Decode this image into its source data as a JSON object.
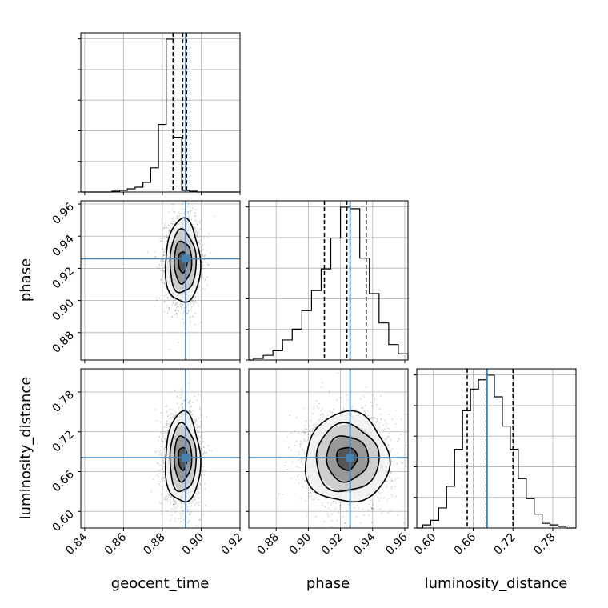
{
  "chart_data": {
    "type": "corner",
    "parameters": [
      "geocent_time",
      "phase",
      "luminosity_distance"
    ],
    "axis_labels": {
      "x": [
        "geocent_time",
        "phase",
        "luminosity_distance"
      ],
      "y": [
        "",
        "phase",
        "luminosity_distance"
      ]
    },
    "ranges": [
      [
        0.838,
        0.92
      ],
      [
        0.863,
        0.962
      ],
      [
        0.575,
        0.815
      ]
    ],
    "ticks": [
      {
        "values": [
          0.84,
          0.86,
          0.88,
          0.9,
          0.92
        ],
        "labels": [
          "0.84",
          "0.86",
          "0.88",
          "0.90",
          "0.92"
        ]
      },
      {
        "values": [
          0.88,
          0.9,
          0.92,
          0.94,
          0.96
        ],
        "labels": [
          "0.88",
          "0.90",
          "0.92",
          "0.94",
          "0.96"
        ]
      },
      {
        "values": [
          0.6,
          0.66,
          0.72,
          0.78
        ],
        "labels": [
          "0.60",
          "0.66",
          "0.72",
          "0.78"
        ]
      }
    ],
    "truths": [
      0.892,
      0.926,
      0.681
    ],
    "quantiles": [
      [
        0.8855,
        0.8905,
        0.8925
      ],
      [
        0.91,
        0.924,
        0.936
      ],
      [
        0.651,
        0.68,
        0.72
      ]
    ],
    "histograms": [
      {
        "bin_edges": [
          0.854,
          0.858,
          0.862,
          0.866,
          0.87,
          0.874,
          0.878,
          0.882,
          0.886,
          0.89,
          0.894,
          0.898,
          0.902,
          0.906
        ],
        "counts": [
          0.005,
          0.01,
          0.02,
          0.03,
          0.06,
          0.15,
          0.42,
          0.95,
          0.34,
          0.01,
          0.005,
          0,
          0
        ]
      },
      {
        "bin_edges": [
          0.866,
          0.872,
          0.878,
          0.884,
          0.89,
          0.896,
          0.902,
          0.908,
          0.914,
          0.92,
          0.926,
          0.932,
          0.938,
          0.944,
          0.95,
          0.956,
          0.962
        ],
        "counts": [
          0.01,
          0.03,
          0.06,
          0.13,
          0.2,
          0.32,
          0.45,
          0.59,
          0.79,
          0.99,
          0.98,
          0.66,
          0.43,
          0.24,
          0.1,
          0.04
        ]
      },
      {
        "bin_edges": [
          0.584,
          0.596,
          0.608,
          0.62,
          0.632,
          0.644,
          0.656,
          0.668,
          0.68,
          0.692,
          0.704,
          0.716,
          0.728,
          0.74,
          0.752,
          0.764,
          0.776,
          0.788,
          0.8
        ],
        "counts": [
          0.02,
          0.05,
          0.13,
          0.27,
          0.51,
          0.76,
          0.9,
          0.96,
          0.99,
          0.85,
          0.66,
          0.51,
          0.32,
          0.19,
          0.09,
          0.03,
          0.02,
          0.01
        ]
      }
    ],
    "posterior_2d": [
      {
        "x_param": 0,
        "y_param": 1,
        "center": [
          0.8905,
          0.924
        ],
        "sigma": [
          0.0045,
          0.013
        ],
        "rho": 0.0
      },
      {
        "x_param": 0,
        "y_param": 2,
        "center": [
          0.8905,
          0.68
        ],
        "sigma": [
          0.0045,
          0.034
        ],
        "rho": 0.0
      },
      {
        "x_param": 1,
        "y_param": 2,
        "center": [
          0.924,
          0.68
        ],
        "sigma": [
          0.013,
          0.034
        ],
        "rho": 0.0
      }
    ],
    "contour_levels_sigma": [
      0.5,
      1.0,
      1.5,
      2.0
    ],
    "truth_color": "#4682b4",
    "hist_color": "#000000",
    "quantile_style": "dashed",
    "grid": true
  }
}
